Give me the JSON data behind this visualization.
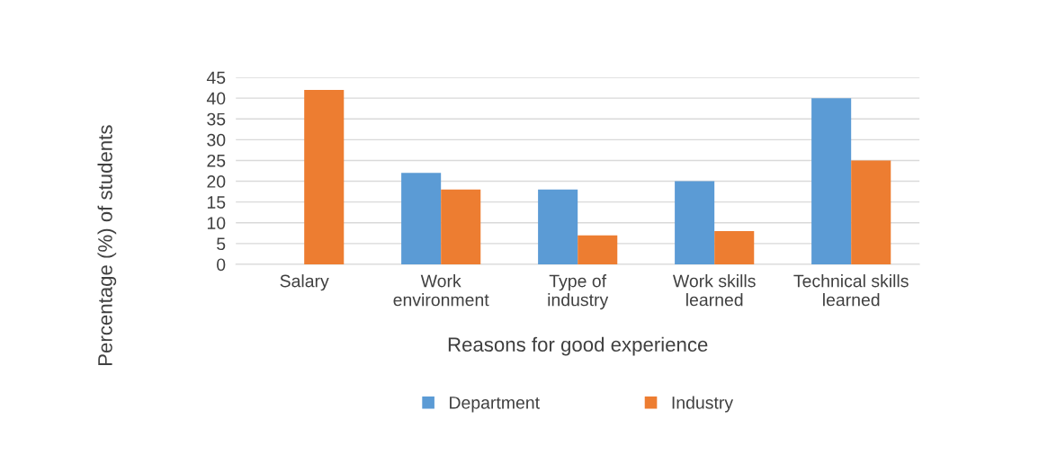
{
  "chart_data": {
    "type": "bar",
    "xlabel": "Reasons for good experience",
    "ylabel": "Percentage (%) of students",
    "categories": [
      "Salary",
      "Work\nenvironment",
      "Type of\nindustry",
      "Work skills\nlearned",
      "Technical skills\nlearned"
    ],
    "series": [
      {
        "name": "Department",
        "color": "#5b9bd5",
        "values": [
          0,
          22,
          18,
          20,
          40
        ]
      },
      {
        "name": "Industry",
        "color": "#ed7d31",
        "values": [
          42,
          18,
          7,
          8,
          25
        ]
      }
    ],
    "ylim": [
      0,
      45
    ],
    "yticks": [
      0,
      5,
      10,
      15,
      20,
      25,
      30,
      35,
      40,
      45
    ],
    "grid": "y",
    "legend": "bottom"
  }
}
